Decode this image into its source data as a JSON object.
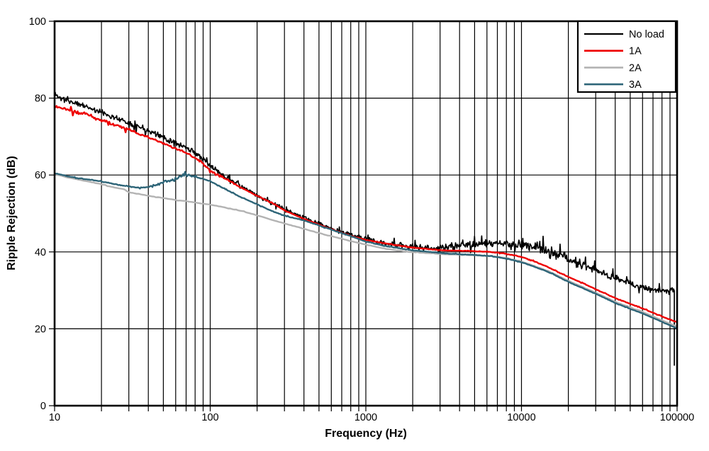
{
  "chart_data": {
    "type": "line",
    "title": "",
    "xlabel": "Frequency (Hz)",
    "ylabel": "Ripple Rejection (dB)",
    "x_scale": "log",
    "x_range": [
      10,
      100000
    ],
    "y_range": [
      0,
      100
    ],
    "x_ticks": [
      "10",
      "100",
      "1000",
      "10000",
      "100000"
    ],
    "x_tick_values": [
      10,
      100,
      1000,
      10000,
      100000
    ],
    "x_minor_multiples": [
      2,
      3,
      4,
      5,
      6,
      7,
      8,
      9
    ],
    "y_ticks": [
      "0",
      "20",
      "40",
      "60",
      "80",
      "100"
    ],
    "y_tick_values": [
      0,
      20,
      40,
      60,
      80,
      100
    ],
    "grid": {
      "x": "all-log-ticks-full-height",
      "y": "major",
      "color": "#000000"
    },
    "legend_position": "top-right",
    "series": [
      {
        "name": "No load",
        "color": "#000000",
        "stroke_width": 1.7,
        "seed": 11,
        "samples": 950,
        "f_end": 96000,
        "end_drop": 10.4,
        "noise": [
          [
            10,
            100,
            0.8
          ],
          [
            100,
            1000,
            0.65
          ],
          [
            1000,
            3000,
            0.9
          ],
          [
            3000,
            8000,
            1.15
          ],
          [
            8000,
            16000,
            2.0
          ],
          [
            16000,
            30000,
            1.5
          ],
          [
            30000,
            97000,
            1.0
          ]
        ],
        "points": [
          [
            10,
            81.3
          ],
          [
            11,
            79.9
          ],
          [
            12,
            79.4
          ],
          [
            14,
            78.6
          ],
          [
            16,
            77.8
          ],
          [
            18,
            77.0
          ],
          [
            20,
            76.3
          ],
          [
            24,
            75.1
          ],
          [
            28,
            74.1
          ],
          [
            33,
            72.9
          ],
          [
            40,
            71.6
          ],
          [
            48,
            70.1
          ],
          [
            56,
            68.9
          ],
          [
            65,
            67.7
          ],
          [
            75,
            66.5
          ],
          [
            85,
            64.9
          ],
          [
            100,
            62.4
          ],
          [
            115,
            60.6
          ],
          [
            135,
            58.9
          ],
          [
            160,
            56.9
          ],
          [
            200,
            54.7
          ],
          [
            250,
            52.6
          ],
          [
            300,
            51.1
          ],
          [
            400,
            48.9
          ],
          [
            500,
            47.3
          ],
          [
            600,
            46.1
          ],
          [
            800,
            44.4
          ],
          [
            1000,
            43.4
          ],
          [
            1300,
            42.3
          ],
          [
            1600,
            41.7
          ],
          [
            2000,
            41.3
          ],
          [
            2600,
            41.0
          ],
          [
            3200,
            41.1
          ],
          [
            4000,
            41.6
          ],
          [
            5000,
            42.0
          ],
          [
            6300,
            42.2
          ],
          [
            8000,
            42.0
          ],
          [
            10000,
            41.8
          ],
          [
            12000,
            41.9
          ],
          [
            14000,
            40.6
          ],
          [
            16000,
            39.3
          ],
          [
            20000,
            38.3
          ],
          [
            25000,
            36.6
          ],
          [
            30000,
            35.2
          ],
          [
            40000,
            33.2
          ],
          [
            50000,
            31.8
          ],
          [
            60000,
            30.9
          ],
          [
            80000,
            30.0
          ],
          [
            96000,
            30.2
          ]
        ]
      },
      {
        "name": "1A",
        "color": "#ee0000",
        "stroke_width": 2.4,
        "seed": 23,
        "samples": 650,
        "noise": [
          [
            10,
            40,
            0.5
          ],
          [
            40,
            150,
            0.3
          ],
          [
            150,
            100001,
            0.08
          ]
        ],
        "points": [
          [
            10,
            77.9
          ],
          [
            12,
            76.9
          ],
          [
            14,
            76.3
          ],
          [
            16,
            75.9
          ],
          [
            18,
            74.9
          ],
          [
            20,
            74.3
          ],
          [
            24,
            73.2
          ],
          [
            28,
            72.3
          ],
          [
            33,
            71.2
          ],
          [
            40,
            69.9
          ],
          [
            48,
            68.5
          ],
          [
            56,
            67.4
          ],
          [
            65,
            66.3
          ],
          [
            75,
            65.1
          ],
          [
            85,
            63.8
          ],
          [
            100,
            61.2
          ],
          [
            115,
            59.8
          ],
          [
            135,
            58.3
          ],
          [
            160,
            56.6
          ],
          [
            200,
            54.6
          ],
          [
            250,
            52.7
          ],
          [
            300,
            50.8
          ],
          [
            400,
            48.6
          ],
          [
            500,
            47.1
          ],
          [
            600,
            45.9
          ],
          [
            800,
            44.2
          ],
          [
            1000,
            43.1
          ],
          [
            1300,
            42.3
          ],
          [
            1600,
            41.7
          ],
          [
            2000,
            41.1
          ],
          [
            2600,
            40.7
          ],
          [
            3200,
            40.4
          ],
          [
            4000,
            40.3
          ],
          [
            5000,
            40.2
          ],
          [
            6300,
            40.0
          ],
          [
            8000,
            39.5
          ],
          [
            10000,
            38.7
          ],
          [
            12000,
            37.6
          ],
          [
            14000,
            36.5
          ],
          [
            16000,
            35.4
          ],
          [
            20000,
            33.5
          ],
          [
            25000,
            31.8
          ],
          [
            30000,
            30.3
          ],
          [
            40000,
            28.0
          ],
          [
            50000,
            26.5
          ],
          [
            60000,
            25.3
          ],
          [
            80000,
            23.2
          ],
          [
            100000,
            21.7
          ]
        ]
      },
      {
        "name": "2A",
        "color": "#b3b3b3",
        "stroke_width": 2.4,
        "seed": 37,
        "samples": 320,
        "noise": [
          [
            10,
            100001,
            0.06
          ]
        ],
        "points": [
          [
            10,
            60.2
          ],
          [
            12,
            59.4
          ],
          [
            14,
            58.9
          ],
          [
            16,
            58.4
          ],
          [
            18,
            58.0
          ],
          [
            20,
            57.6
          ],
          [
            24,
            56.8
          ],
          [
            28,
            56.3
          ],
          [
            30,
            55.6
          ],
          [
            35,
            55.0
          ],
          [
            40,
            54.6
          ],
          [
            48,
            54.1
          ],
          [
            56,
            53.7
          ],
          [
            65,
            53.3
          ],
          [
            75,
            53.0
          ],
          [
            85,
            52.7
          ],
          [
            100,
            52.3
          ],
          [
            120,
            51.7
          ],
          [
            140,
            51.1
          ],
          [
            160,
            50.6
          ],
          [
            200,
            49.5
          ],
          [
            250,
            48.3
          ],
          [
            300,
            47.4
          ],
          [
            400,
            46.0
          ],
          [
            500,
            44.9
          ],
          [
            600,
            44.1
          ],
          [
            800,
            42.8
          ],
          [
            1000,
            41.9
          ],
          [
            1300,
            40.9
          ],
          [
            1600,
            40.4
          ],
          [
            2000,
            39.9
          ],
          [
            2600,
            39.6
          ],
          [
            3200,
            39.4
          ],
          [
            4000,
            39.3
          ],
          [
            5000,
            39.1
          ],
          [
            6300,
            38.9
          ],
          [
            8000,
            38.4
          ],
          [
            10000,
            37.5
          ],
          [
            12000,
            36.4
          ],
          [
            14000,
            35.4
          ],
          [
            16000,
            34.4
          ],
          [
            20000,
            32.5
          ],
          [
            25000,
            30.8
          ],
          [
            30000,
            29.4
          ],
          [
            40000,
            27.0
          ],
          [
            50000,
            25.6
          ],
          [
            60000,
            24.4
          ],
          [
            80000,
            22.2
          ],
          [
            100000,
            20.6
          ]
        ]
      },
      {
        "name": "3A",
        "color": "#2e6578",
        "stroke_width": 2.4,
        "seed": 51,
        "samples": 650,
        "noise": [
          [
            10,
            42,
            0.12
          ],
          [
            42,
            82,
            0.55
          ],
          [
            82,
            100001,
            0.08
          ]
        ],
        "points": [
          [
            10,
            60.5
          ],
          [
            12,
            59.7
          ],
          [
            14,
            59.2
          ],
          [
            16,
            58.9
          ],
          [
            18,
            58.6
          ],
          [
            20,
            58.3
          ],
          [
            24,
            57.7
          ],
          [
            28,
            57.2
          ],
          [
            32,
            56.9
          ],
          [
            36,
            56.7
          ],
          [
            40,
            56.9
          ],
          [
            45,
            57.4
          ],
          [
            50,
            57.9
          ],
          [
            55,
            58.4
          ],
          [
            60,
            59.1
          ],
          [
            65,
            59.6
          ],
          [
            70,
            60.0
          ],
          [
            75,
            59.9
          ],
          [
            80,
            59.5
          ],
          [
            90,
            59.0
          ],
          [
            100,
            58.4
          ],
          [
            115,
            57.1
          ],
          [
            135,
            55.6
          ],
          [
            160,
            54.1
          ],
          [
            200,
            52.4
          ],
          [
            250,
            50.6
          ],
          [
            300,
            49.4
          ],
          [
            400,
            48.2
          ],
          [
            500,
            46.9
          ],
          [
            600,
            45.8
          ],
          [
            800,
            44.1
          ],
          [
            1000,
            42.7
          ],
          [
            1300,
            41.6
          ],
          [
            1600,
            41.0
          ],
          [
            2000,
            40.4
          ],
          [
            2600,
            40.0
          ],
          [
            3200,
            39.6
          ],
          [
            4000,
            39.4
          ],
          [
            5000,
            39.2
          ],
          [
            6300,
            38.9
          ],
          [
            8000,
            38.3
          ],
          [
            10000,
            37.3
          ],
          [
            12000,
            36.2
          ],
          [
            14000,
            35.2
          ],
          [
            16000,
            34.2
          ],
          [
            20000,
            32.2
          ],
          [
            25000,
            30.5
          ],
          [
            30000,
            29.1
          ],
          [
            40000,
            26.7
          ],
          [
            50000,
            25.2
          ],
          [
            60000,
            24.0
          ],
          [
            80000,
            21.8
          ],
          [
            100000,
            20.1
          ]
        ]
      }
    ]
  }
}
